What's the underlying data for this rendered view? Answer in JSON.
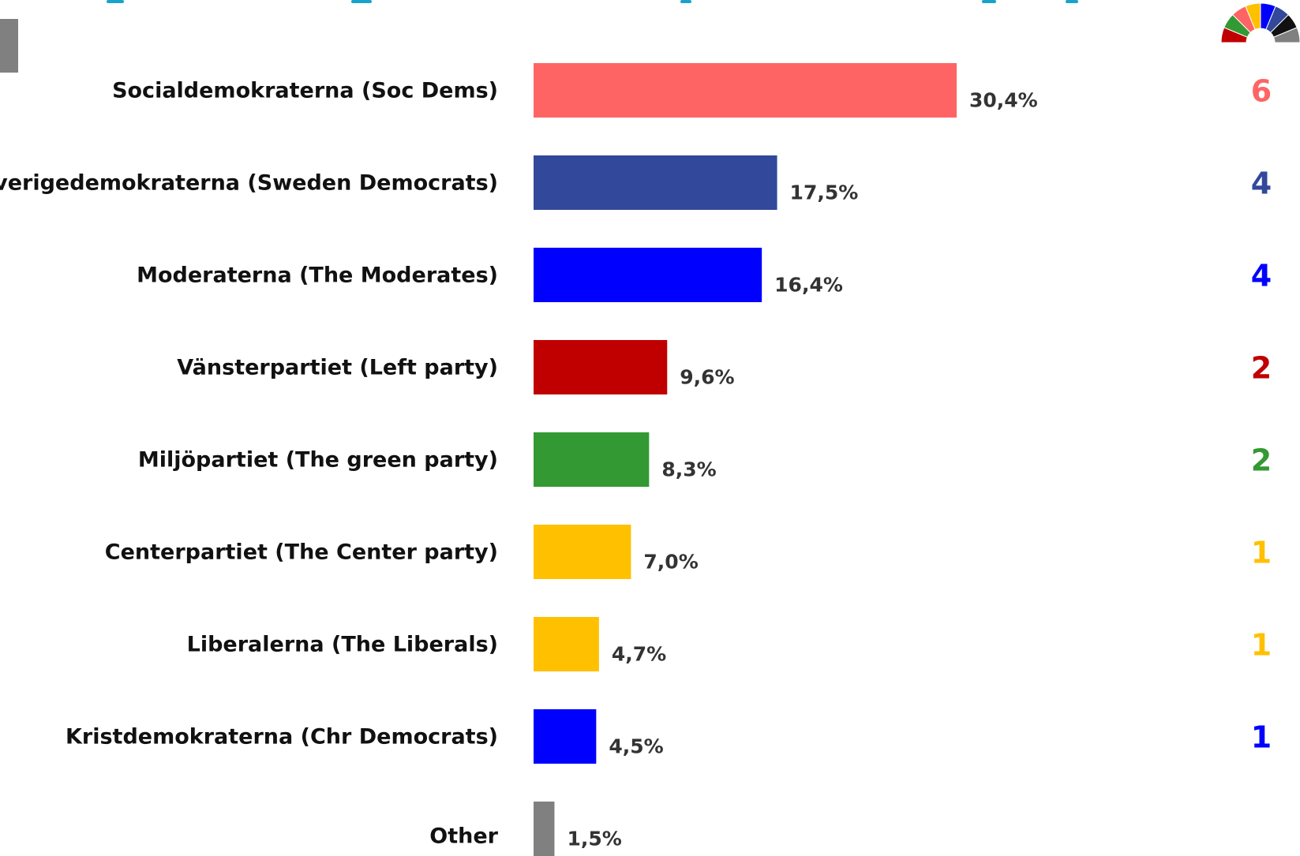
{
  "chart_data": {
    "type": "bar",
    "orientation": "horizontal",
    "categories": [
      "Socialdemokraterna (Soc Dems)",
      "Sverigedemokraterna (Sweden Democrats)",
      "Moderaterna (The Moderates)",
      "Vänsterpartiet (Left party)",
      "Miljöpartiet (The green party)",
      "Centerpartiet (The Center party)",
      "Liberalerna (The Liberals)",
      "Kristdemokraterna (Chr Democrats)",
      "Other"
    ],
    "values": [
      30.4,
      17.5,
      16.4,
      9.6,
      8.3,
      7.0,
      4.7,
      4.5,
      1.5
    ],
    "value_labels": [
      "30,4%",
      "17,5%",
      "16,4%",
      "9,6%",
      "8,3%",
      "7,0%",
      "4,7%",
      "4,5%",
      "1,5%"
    ],
    "seats": [
      "6",
      "4",
      "4",
      "2",
      "2",
      "1",
      "1",
      "1",
      ""
    ],
    "colors": [
      "#ff6464",
      "#32489b",
      "#0000ff",
      "#c00000",
      "#339933",
      "#ffc000",
      "#ffc000",
      "#0000ff",
      "#808080"
    ],
    "xlim": [
      0,
      30.4
    ],
    "grid": false,
    "title": "",
    "xlabel": "",
    "ylabel": ""
  },
  "parliament_icon": {
    "segment_colors": [
      "#c00000",
      "#339933",
      "#ff6464",
      "#ffc000",
      "#0000ff",
      "#32489b",
      "#111111",
      "#808080"
    ]
  }
}
